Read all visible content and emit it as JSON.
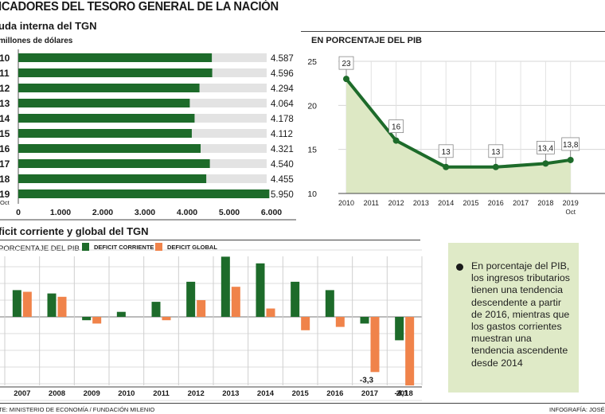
{
  "header": {
    "title": "ICADORES DEL TESORO GENERAL DE LA NACIÓN"
  },
  "debt_panel": {
    "title": "uda interna del TGN",
    "subtitle": "millones de dólares"
  },
  "pib_panel": {
    "title": "EN PORCENTAJE DEL PIB"
  },
  "deficit_panel": {
    "title": "ficit corriente y global del TGN",
    "unit_label": "PORCENTAJE DEL PIB"
  },
  "note": {
    "text": "En porcentaje del PIB, los ingresos tributarios tienen una tendencia descendente a partir de 2016, mientras que los gastos corrientes muestran una tendencia ascendente desde 2014"
  },
  "footer": {
    "source": "TE: MINISTERIO DE ECONOMÍA / FUNDACIÓN MILENIO",
    "credit": "INFOGRAFÍA: JOSÉ A"
  },
  "colors": {
    "green": "#1d6b2a",
    "orange": "#f0834a",
    "track": "#e3e3e3",
    "area": "#dde8c4",
    "note_bg": "#dfeac7"
  },
  "chart_data": [
    {
      "type": "bar",
      "orientation": "horizontal",
      "categories": [
        "10",
        "11",
        "12",
        "13",
        "14",
        "15",
        "16",
        "17",
        "18",
        "19"
      ],
      "category_note": {
        "19": "Oct"
      },
      "values": [
        4587,
        4596,
        4294,
        4064,
        4178,
        4112,
        4321,
        4540,
        4455,
        5950
      ],
      "value_labels": [
        "4.587",
        "4.596",
        "4.294",
        "4.064",
        "4.178",
        "4.112",
        "4.321",
        "4.540",
        "4.455",
        "5.950"
      ],
      "xlim": [
        0,
        6000
      ],
      "xticks": [
        "0",
        "1.000",
        "2.000",
        "3.000",
        "4.000",
        "5.000",
        "6.000"
      ]
    },
    {
      "type": "area",
      "title": "EN PORCENTAJE DEL PIB",
      "x": [
        "2010",
        "2011",
        "2012",
        "2013",
        "2014",
        "2015",
        "2016",
        "2017",
        "2018",
        "2019"
      ],
      "x_note": {
        "2019": "Oct"
      },
      "points": [
        {
          "x": "2010",
          "y": 23,
          "label": "23"
        },
        {
          "x": "2012",
          "y": 16,
          "label": "16"
        },
        {
          "x": "2014",
          "y": 13,
          "label": "13"
        },
        {
          "x": "2016",
          "y": 13,
          "label": "13"
        },
        {
          "x": "2018",
          "y": 13.4,
          "label": "13,4"
        },
        {
          "x": "2019",
          "y": 13.8,
          "label": "13,8"
        }
      ],
      "ylim": [
        10,
        25
      ],
      "yticks": [
        "10",
        "15",
        "20",
        "25"
      ],
      "grid": true
    },
    {
      "type": "bar",
      "categories": [
        "2007",
        "2008",
        "2009",
        "2010",
        "2011",
        "2012",
        "2013",
        "2014",
        "2015",
        "2016",
        "2017",
        "2018"
      ],
      "series": [
        {
          "name": "DEFICIT CORRIENTE",
          "values": [
            1.6,
            1.4,
            -0.2,
            0.3,
            0.9,
            2.1,
            3.6,
            3.2,
            2.1,
            1.6,
            -0.4,
            -1.4
          ]
        },
        {
          "name": "DEFICIT GLOBAL",
          "values": [
            1.5,
            1.2,
            -0.4,
            0.0,
            -0.2,
            1.0,
            1.8,
            0.5,
            -0.8,
            -0.6,
            -3.3,
            -4.1
          ]
        }
      ],
      "data_labels": [
        {
          "category": "2017",
          "series": "DEFICIT GLOBAL",
          "label": "-3,3"
        },
        {
          "category": "2018",
          "series": "DEFICIT GLOBAL",
          "label": "-4,1"
        }
      ],
      "ylim": [
        -5,
        4
      ],
      "grid": true,
      "legend_position": "top-left"
    }
  ]
}
